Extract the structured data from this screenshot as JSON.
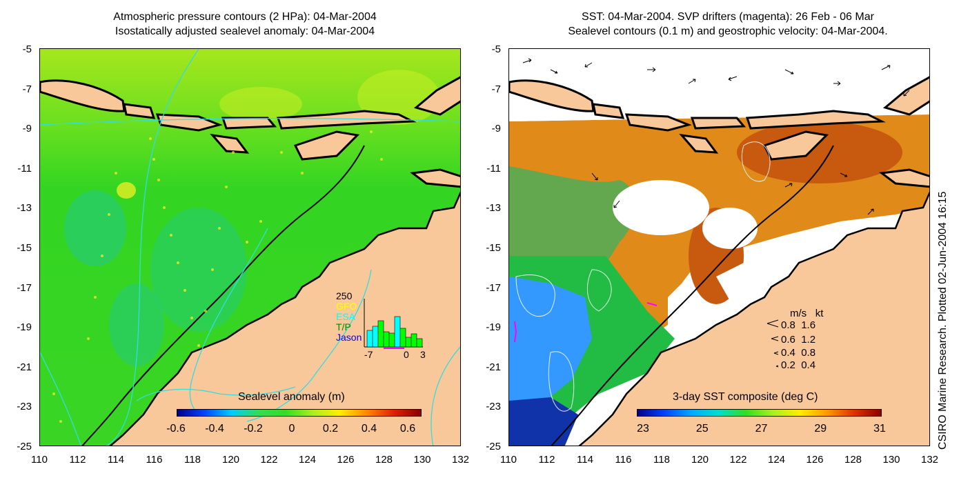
{
  "left_panel": {
    "title_line1": "Atmospheric pressure contours (2 HPa): 04-Mar-2004",
    "title_line2": "Isostatically adjusted sealevel anomaly: 04-Mar-2004",
    "colorbar_label": "Sealevel anomaly (m)",
    "colorbar_ticks": [
      "-0.6",
      "-0.4",
      "-0.2",
      "0",
      "0.2",
      "0.4",
      "0.6"
    ],
    "histogram": {
      "ymax_label": "250",
      "legend": [
        "GFO",
        "ESA",
        "T/P",
        "Jason"
      ],
      "legend_colors": [
        "#ffff00",
        "#00ffff",
        "#00ff00",
        "#0000ff"
      ],
      "x_ticks": [
        "-7",
        "0",
        "3"
      ]
    }
  },
  "right_panel": {
    "title_line1": "SST: 04-Mar-2004. SVP drifters (magenta): 26 Feb - 06 Mar",
    "title_line2": "Sealevel contours (0.1 m) and geostrophic velocity: 04-Mar-2004.",
    "colorbar_label": "3-day SST composite (deg C)",
    "colorbar_ticks": [
      "23",
      "25",
      "27",
      "29",
      "31"
    ],
    "velocity_legend": {
      "header_ms": "m/s",
      "header_kt": "kt",
      "rows": [
        {
          "ms": "0.8",
          "kt": "1.6"
        },
        {
          "ms": "0.6",
          "kt": "1.2"
        },
        {
          "ms": "0.4",
          "kt": "0.8"
        },
        {
          "ms": "0.2",
          "kt": "0.4"
        }
      ]
    }
  },
  "axes": {
    "y_ticks": [
      "-5",
      "-7",
      "-9",
      "-11",
      "-13",
      "-15",
      "-17",
      "-19",
      "-21",
      "-23",
      "-25"
    ],
    "x_ticks": [
      "110",
      "112",
      "114",
      "116",
      "118",
      "120",
      "122",
      "124",
      "126",
      "128",
      "130",
      "132"
    ]
  },
  "credit": "CSIRO Marine Research. Plotted 02-Jun-2004 16:15",
  "colors": {
    "land": "#f9c89a",
    "sla_ocean": "#33dd22",
    "sla_north": "#aaee22",
    "sst_warm": "#cc6600",
    "sst_cool": "#3399ff",
    "cloud": "#ffffff",
    "contour": "#33dddd",
    "drifter": "#ff00ff"
  }
}
